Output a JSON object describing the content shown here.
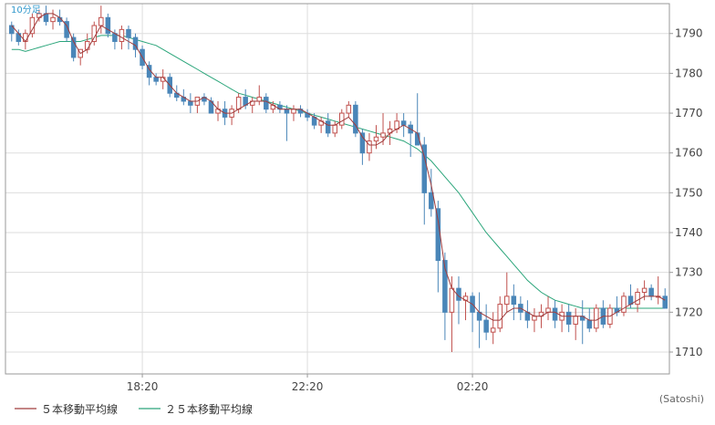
{
  "chart_data": {
    "type": "candlestick",
    "timeframe_label": "10分足",
    "credit": "(Satoshi)",
    "x_ticks": [
      "18:20",
      "22:20",
      "02:20"
    ],
    "y_ticks": [
      1710,
      1720,
      1730,
      1740,
      1750,
      1760,
      1770,
      1780,
      1790
    ],
    "ylim": [
      1704.5,
      1797.5
    ],
    "grid": true,
    "legend_position": "bottom-left",
    "colors": {
      "up": "#c0504d",
      "down": "#4a86b8",
      "ma5": "#a03c3c",
      "ma25": "#2aa57a",
      "grid": "#dddddd",
      "axis": "#999999"
    },
    "series": [
      {
        "name": "５本移動平均線",
        "color": "#a03c3c"
      },
      {
        "name": "２５本移動平均線",
        "color": "#2aa57a"
      }
    ],
    "candles": [
      [
        1792,
        1793,
        1788,
        1790
      ],
      [
        1790,
        1791,
        1787,
        1788
      ],
      [
        1788,
        1791,
        1786,
        1790
      ],
      [
        1790,
        1795,
        1789,
        1794
      ],
      [
        1794,
        1796,
        1793,
        1795
      ],
      [
        1795,
        1797,
        1792,
        1793
      ],
      [
        1793,
        1796,
        1791,
        1794
      ],
      [
        1794,
        1796,
        1792,
        1793
      ],
      [
        1793,
        1794,
        1788,
        1789
      ],
      [
        1789,
        1790,
        1783,
        1784
      ],
      [
        1784,
        1786,
        1782,
        1786
      ],
      [
        1786,
        1790,
        1785,
        1788
      ],
      [
        1788,
        1793,
        1787,
        1792
      ],
      [
        1792,
        1797,
        1790,
        1794
      ],
      [
        1794,
        1795,
        1789,
        1790
      ],
      [
        1790,
        1791,
        1786,
        1788
      ],
      [
        1788,
        1792,
        1786,
        1791
      ],
      [
        1791,
        1792,
        1786,
        1789
      ],
      [
        1789,
        1790,
        1784,
        1786
      ],
      [
        1786,
        1787,
        1781,
        1782
      ],
      [
        1782,
        1783,
        1777,
        1779
      ],
      [
        1779,
        1780,
        1777,
        1778
      ],
      [
        1778,
        1781,
        1776,
        1779
      ],
      [
        1779,
        1780,
        1774,
        1775
      ],
      [
        1775,
        1777,
        1773,
        1774
      ],
      [
        1774,
        1776,
        1772,
        1773
      ],
      [
        1773,
        1775,
        1770,
        1772
      ],
      [
        1772,
        1774,
        1770,
        1774
      ],
      [
        1774,
        1775,
        1772,
        1773
      ],
      [
        1773,
        1774,
        1770,
        1770
      ],
      [
        1770,
        1773,
        1768,
        1771
      ],
      [
        1771,
        1773,
        1767,
        1769
      ],
      [
        1769,
        1772,
        1767,
        1771
      ],
      [
        1771,
        1775,
        1770,
        1774
      ],
      [
        1774,
        1776,
        1771,
        1772
      ],
      [
        1772,
        1774,
        1770,
        1773
      ],
      [
        1773,
        1777,
        1772,
        1774
      ],
      [
        1774,
        1775,
        1770,
        1771
      ],
      [
        1771,
        1773,
        1770,
        1772
      ],
      [
        1772,
        1773,
        1770,
        1771
      ],
      [
        1771,
        1772,
        1763,
        1770
      ],
      [
        1770,
        1772,
        1768,
        1771
      ],
      [
        1771,
        1772,
        1769,
        1770
      ],
      [
        1770,
        1771,
        1768,
        1769
      ],
      [
        1769,
        1770,
        1766,
        1767
      ],
      [
        1767,
        1769,
        1765,
        1768
      ],
      [
        1768,
        1770,
        1764,
        1765
      ],
      [
        1765,
        1768,
        1764,
        1767
      ],
      [
        1767,
        1771,
        1766,
        1770
      ],
      [
        1770,
        1773,
        1769,
        1772
      ],
      [
        1772,
        1773,
        1764,
        1765
      ],
      [
        1765,
        1766,
        1757,
        1760
      ],
      [
        1760,
        1765,
        1758,
        1763
      ],
      [
        1763,
        1767,
        1761,
        1764
      ],
      [
        1764,
        1770,
        1762,
        1765
      ],
      [
        1765,
        1768,
        1762,
        1766
      ],
      [
        1766,
        1770,
        1765,
        1768
      ],
      [
        1768,
        1770,
        1764,
        1767
      ],
      [
        1767,
        1768,
        1759,
        1765
      ],
      [
        1765,
        1775,
        1762,
        1762
      ],
      [
        1762,
        1764,
        1742,
        1750
      ],
      [
        1750,
        1756,
        1744,
        1746
      ],
      [
        1746,
        1748,
        1725,
        1733
      ],
      [
        1733,
        1735,
        1713,
        1720
      ],
      [
        1720,
        1729,
        1710,
        1726
      ],
      [
        1726,
        1729,
        1717,
        1723
      ],
      [
        1723,
        1725,
        1718,
        1724
      ],
      [
        1724,
        1725,
        1715,
        1720
      ],
      [
        1720,
        1725,
        1711,
        1718
      ],
      [
        1718,
        1722,
        1713,
        1715
      ],
      [
        1715,
        1720,
        1712,
        1716
      ],
      [
        1716,
        1724,
        1715,
        1722
      ],
      [
        1722,
        1730,
        1720,
        1724
      ],
      [
        1724,
        1727,
        1718,
        1722
      ],
      [
        1722,
        1724,
        1718,
        1720
      ],
      [
        1720,
        1723,
        1716,
        1718
      ],
      [
        1718,
        1721,
        1715,
        1719
      ],
      [
        1719,
        1722,
        1716,
        1720
      ],
      [
        1720,
        1724,
        1718,
        1721
      ],
      [
        1721,
        1723,
        1716,
        1718
      ],
      [
        1718,
        1722,
        1715,
        1720
      ],
      [
        1720,
        1722,
        1715,
        1717
      ],
      [
        1717,
        1721,
        1713,
        1719
      ],
      [
        1719,
        1723,
        1712,
        1718
      ],
      [
        1718,
        1721,
        1715,
        1716
      ],
      [
        1716,
        1722,
        1715,
        1721
      ],
      [
        1721,
        1723,
        1716,
        1717
      ],
      [
        1717,
        1722,
        1716,
        1721
      ],
      [
        1721,
        1724,
        1719,
        1720
      ],
      [
        1720,
        1725,
        1719,
        1724
      ],
      [
        1724,
        1727,
        1721,
        1722
      ],
      [
        1722,
        1726,
        1720,
        1725
      ],
      [
        1725,
        1728,
        1723,
        1726
      ],
      [
        1726,
        1727,
        1723,
        1724
      ],
      [
        1724,
        1729,
        1722,
        1724
      ],
      [
        1724,
        1726,
        1721,
        1721
      ]
    ],
    "ma5": [
      1792,
      1790,
      1788,
      1791,
      1794,
      1795,
      1795,
      1794,
      1792,
      1788,
      1785,
      1786,
      1789,
      1792,
      1791,
      1790,
      1789,
      1788,
      1787,
      1784,
      1781,
      1779,
      1779,
      1777,
      1775,
      1774,
      1773,
      1773,
      1774,
      1773,
      1771,
      1770,
      1770,
      1771,
      1772,
      1773,
      1773,
      1773,
      1772,
      1771,
      1771,
      1771,
      1771,
      1770,
      1769,
      1768,
      1767,
      1767,
      1768,
      1769,
      1767,
      1764,
      1762,
      1762,
      1763,
      1765,
      1766,
      1767,
      1766,
      1765,
      1759,
      1752,
      1743,
      1731,
      1726,
      1724,
      1723,
      1722,
      1720,
      1719,
      1718,
      1718,
      1720,
      1721,
      1721,
      1720,
      1719,
      1719,
      1720,
      1720,
      1719,
      1719,
      1719,
      1719,
      1718,
      1718,
      1719,
      1719,
      1720,
      1721,
      1722,
      1723,
      1724,
      1724,
      1724,
      1723
    ],
    "ma25": [
      1786,
      1786,
      1785.5,
      1786,
      1786.5,
      1787,
      1787.5,
      1788,
      1788,
      1788,
      1788,
      1788.5,
      1789,
      1789.5,
      1789.5,
      1789.5,
      1789.5,
      1789,
      1788.5,
      1788,
      1787.5,
      1787,
      1786,
      1785,
      1784,
      1783,
      1782,
      1781,
      1780,
      1779,
      1778,
      1777,
      1776,
      1775,
      1774.5,
      1774,
      1773.5,
      1773,
      1772.5,
      1772,
      1771.5,
      1771,
      1770.5,
      1770,
      1769.5,
      1769,
      1768.5,
      1768,
      1767.5,
      1767,
      1766.5,
      1766,
      1765.5,
      1765,
      1764.5,
      1764,
      1763.5,
      1763,
      1762,
      1761,
      1759.5,
      1758,
      1756,
      1754,
      1752,
      1750,
      1747.5,
      1745,
      1742.5,
      1740,
      1738,
      1736,
      1734,
      1732,
      1730,
      1728,
      1726.5,
      1725,
      1724,
      1723,
      1722.5,
      1722,
      1721.5,
      1721,
      1721,
      1721,
      1721,
      1721,
      1721,
      1721,
      1721,
      1721,
      1721,
      1721,
      1721,
      1721
    ]
  },
  "legend": [
    {
      "label": "５本移動平均線",
      "color": "#a03c3c"
    },
    {
      "label": "２５本移動平均線",
      "color": "#2aa57a"
    }
  ]
}
